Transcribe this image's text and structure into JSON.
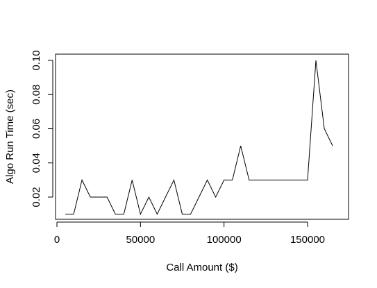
{
  "chart_data": {
    "type": "line",
    "title": "",
    "xlabel": "Call Amount ($)",
    "ylabel": "Algo Run Time (sec)",
    "xlim": [
      0,
      170000
    ],
    "ylim": [
      0.006,
      0.104
    ],
    "xticks": [
      0,
      50000,
      100000,
      150000
    ],
    "xtick_labels": [
      "0",
      "50000",
      "100000",
      "150000"
    ],
    "yticks": [
      0.02,
      0.04,
      0.06,
      0.08,
      0.1
    ],
    "ytick_labels": [
      "0.02",
      "0.04",
      "0.06",
      "0.08",
      "0.10"
    ],
    "grid": false,
    "legend": "none",
    "line_color": "#000000",
    "series": [
      {
        "x": [
          5000,
          10000,
          15000,
          20000,
          25000,
          30000,
          35000,
          40000,
          45000,
          50000,
          55000,
          60000,
          65000,
          70000,
          75000,
          80000,
          85000,
          90000,
          95000,
          100000,
          105000,
          110000,
          115000,
          120000,
          125000,
          130000,
          135000,
          140000,
          145000,
          150000,
          155000,
          160000,
          165000
        ],
        "values": [
          0.01,
          0.01,
          0.03,
          0.02,
          0.02,
          0.02,
          0.01,
          0.01,
          0.03,
          0.01,
          0.02,
          0.01,
          0.02,
          0.03,
          0.01,
          0.01,
          0.02,
          0.03,
          0.02,
          0.03,
          0.03,
          0.05,
          0.03,
          0.03,
          0.03,
          0.03,
          0.03,
          0.03,
          0.03,
          0.03,
          0.1,
          0.06,
          0.05
        ]
      }
    ]
  }
}
